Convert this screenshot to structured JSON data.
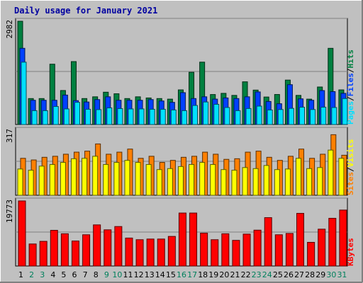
{
  "title": "Daily usage for January 2021",
  "colors": {
    "frame": "#c0c0c0",
    "panel": "#c0c0c0",
    "title": "#0000a0",
    "hits": "#008040",
    "files": "#0040ff",
    "pages": "#00e0ff",
    "visits": "#ffff00",
    "sites": "#ff8000",
    "kbytes": "#ff0000",
    "weekday": "#000000",
    "weekend": "#00805c"
  },
  "chart_data": [
    {
      "type": "bar",
      "categories": [
        "1",
        "2",
        "3",
        "4",
        "5",
        "6",
        "7",
        "8",
        "9",
        "10",
        "11",
        "12",
        "13",
        "14",
        "15",
        "16",
        "17",
        "18",
        "19",
        "20",
        "21",
        "22",
        "23",
        "24",
        "25",
        "26",
        "27",
        "28",
        "29",
        "30",
        "31"
      ],
      "weekend_days": [
        "2",
        "3",
        "9",
        "10",
        "16",
        "17",
        "23",
        "24",
        "30",
        "31"
      ],
      "ymax_label": "2982",
      "ymax": 2982,
      "legend": [
        "Pages",
        "/",
        "Files",
        "/",
        "Hits"
      ],
      "series": [
        {
          "name": "Hits",
          "values": [
            2982,
            750,
            750,
            1742,
            982,
            1817,
            750,
            800,
            933,
            888,
            750,
            800,
            767,
            750,
            733,
            1000,
            1508,
            1801,
            866,
            900,
            841,
            1233,
            994,
            794,
            867,
            1283,
            841,
            733,
            1083,
            2200,
            1000
          ]
        },
        {
          "name": "Files",
          "values": [
            2200,
            700,
            700,
            700,
            850,
            690,
            650,
            720,
            800,
            700,
            700,
            700,
            720,
            680,
            640,
            920,
            750,
            800,
            733,
            767,
            750,
            800,
            941,
            666,
            600,
            1150,
            741,
            700,
            980,
            950,
            900
          ]
        },
        {
          "name": "Pages",
          "values": [
            1800,
            400,
            400,
            520,
            450,
            640,
            440,
            430,
            480,
            460,
            450,
            450,
            440,
            440,
            420,
            400,
            550,
            650,
            583,
            491,
            400,
            462,
            531,
            420,
            433,
            466,
            500,
            433,
            500,
            491,
            750
          ]
        }
      ]
    },
    {
      "type": "bar",
      "categories": [
        "1",
        "2",
        "3",
        "4",
        "5",
        "6",
        "7",
        "8",
        "9",
        "10",
        "11",
        "12",
        "13",
        "14",
        "15",
        "16",
        "17",
        "18",
        "19",
        "20",
        "21",
        "22",
        "23",
        "24",
        "25",
        "26",
        "27",
        "28",
        "29",
        "30",
        "31"
      ],
      "ymax_label": "317",
      "ymax": 317,
      "legend": [
        "Sites",
        "/",
        "Visits"
      ],
      "series": [
        {
          "name": "Visits",
          "values": [
            128,
            122,
            142,
            150,
            160,
            178,
            180,
            190,
            150,
            160,
            170,
            160,
            150,
            125,
            130,
            140,
            150,
            160,
            150,
            125,
            122,
            135,
            130,
            145,
            125,
            128,
            180,
            130,
            135,
            220,
            180
          ]
        },
        {
          "name": "Sites",
          "values": [
            180,
            172,
            185,
            190,
            200,
            210,
            215,
            250,
            200,
            210,
            225,
            180,
            190,
            160,
            170,
            185,
            190,
            210,
            200,
            175,
            178,
            210,
            215,
            185,
            170,
            190,
            225,
            180,
            200,
            295,
            195
          ]
        }
      ]
    },
    {
      "type": "bar",
      "categories": [
        "1",
        "2",
        "3",
        "4",
        "5",
        "6",
        "7",
        "8",
        "9",
        "10",
        "11",
        "12",
        "13",
        "14",
        "15",
        "16",
        "17",
        "18",
        "19",
        "20",
        "21",
        "22",
        "23",
        "24",
        "25",
        "26",
        "27",
        "28",
        "29",
        "30",
        "31"
      ],
      "ymax_label": "19773",
      "ymax": 19773,
      "legend": [
        "KBytes"
      ],
      "series": [
        {
          "name": "KBytes",
          "values": [
            19773,
            6700,
            7500,
            10850,
            9800,
            7600,
            9500,
            12500,
            11000,
            12000,
            8500,
            8000,
            8200,
            8200,
            9000,
            16100,
            16100,
            10000,
            8000,
            9800,
            7800,
            9700,
            10900,
            14700,
            9500,
            9900,
            16000,
            7200,
            11200,
            14500,
            17000
          ]
        }
      ]
    }
  ]
}
